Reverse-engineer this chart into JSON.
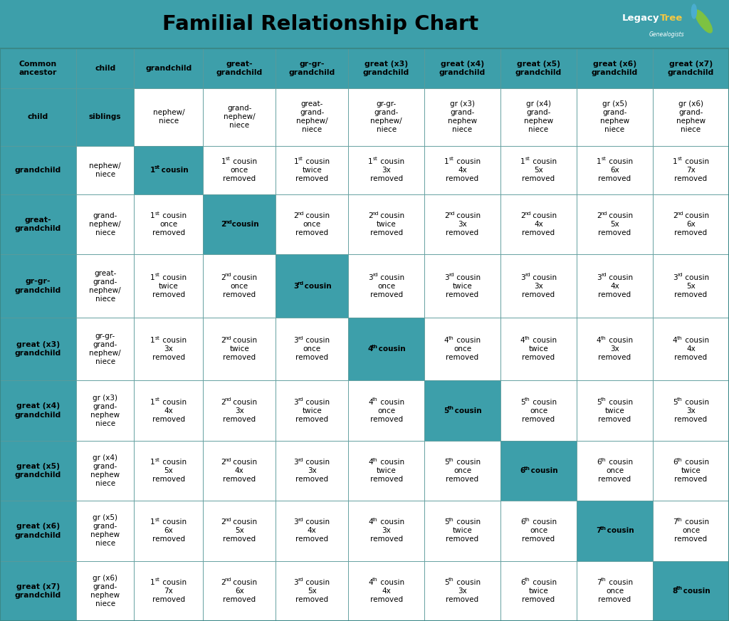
{
  "title": "Familial Relationship Chart",
  "teal": "#3d9faa",
  "white": "#ffffff",
  "black": "#000000",
  "dark_border": "#4a8a8a",
  "col_headers": [
    "Common\nancestor",
    "child",
    "grandchild",
    "great-\ngrandchild",
    "gr-gr-\ngrandchild",
    "great (x3)\ngrandchild",
    "great (x4)\ngrandchild",
    "great (x5)\ngrandchild",
    "great (x6)\ngrandchild",
    "great (x7)\ngrandchild"
  ],
  "row_headers": [
    "child",
    "grandchild",
    "great-\ngrandchild",
    "gr-gr-\ngrandchild",
    "great (x3)\ngrandchild",
    "great (x4)\ngrandchild",
    "great (x5)\ngrandchild",
    "great (x6)\ngrandchild",
    "great (x7)\ngrandchild"
  ],
  "cells": [
    [
      "siblings",
      "nephew/\nniece",
      "grand-\nnephew/\nniece",
      "great-\ngrand-\nnephew/\nniece",
      "gr-gr-\ngrand-\nnephew/\nniece",
      "gr (x3)\ngrand-\nnephew\nniece",
      "gr (x4)\ngrand-\nnephew\nniece",
      "gr (x5)\ngrand-\nnephew\nniece",
      "gr (x6)\ngrand-\nnephew\nniece"
    ],
    [
      "nephew/\nniece",
      "1~st~ cousin",
      "1~st~ cousin\nonce\nremoved",
      "1~st~ cousin\ntwice\nremoved",
      "1~st~ cousin\n3x\nremoved",
      "1~st~ cousin\n4x\nremoved",
      "1~st~ cousin\n5x\nremoved",
      "1~st~ cousin\n6x\nremoved",
      "1~st~ cousin\n7x\nremoved"
    ],
    [
      "grand-\nnephew/\nniece",
      "1~st~ cousin\nonce\nremoved",
      "2~nd~ cousin",
      "2~nd~ cousin\nonce\nremoved",
      "2~nd~ cousin\ntwice\nremoved",
      "2~nd~ cousin\n3x\nremoved",
      "2~nd~ cousin\n4x\nremoved",
      "2~nd~ cousin\n5x\nremoved",
      "2~nd~ cousin\n6x\nremoved"
    ],
    [
      "great-\ngrand-\nnephew/\nniece",
      "1~st~ cousin\ntwice\nremoved",
      "2~nd~ cousin\nonce\nremoved",
      "3~rd~ cousin",
      "3~rd~ cousin\nonce\nremoved",
      "3~rd~ cousin\ntwice\nremoved",
      "3~rd~ cousin\n3x\nremoved",
      "3~rd~ cousin\n4x\nremoved",
      "3~rd~ cousin\n5x\nremoved"
    ],
    [
      "gr-gr-\ngrand-\nnephew/\nniece",
      "1~st~ cousin\n3x\nremoved",
      "2~nd~ cousin\ntwice\nremoved",
      "3~rd~ cousin\nonce\nremoved",
      "4~th~ cousin",
      "4~th~ cousin\nonce\nremoved",
      "4~th~ cousin\ntwice\nremoved",
      "4~th~ cousin\n3x\nremoved",
      "4~th~ cousin\n4x\nremoved"
    ],
    [
      "gr (x3)\ngrand-\nnephew\nniece",
      "1~st~ cousin\n4x\nremoved",
      "2~nd~ cousin\n3x\nremoved",
      "3~rd~ cousin\ntwice\nremoved",
      "4~th~ cousin\nonce\nremoved",
      "5~th~ cousin",
      "5~th~ cousin\nonce\nremoved",
      "5~th~ cousin\ntwice\nremoved",
      "5~th~ cousin\n3x\nremoved"
    ],
    [
      "gr (x4)\ngrand-\nnephew\nniece",
      "1~st~ cousin\n5x\nremoved",
      "2~nd~ cousin\n4x\nremoved",
      "3~rd~ cousin\n3x\nremoved",
      "4~th~ cousin\ntwice\nremoved",
      "5~th~ cousin\nonce\nremoved",
      "6~th~ cousin",
      "6~th~ cousin\nonce\nremoved",
      "6~th~ cousin\ntwice\nremoved"
    ],
    [
      "gr (x5)\ngrand-\nnephew\nniece",
      "1~st~ cousin\n6x\nremoved",
      "2~nd~ cousin\n5x\nremoved",
      "3~rd~ cousin\n4x\nremoved",
      "4~th~ cousin\n3x\nremoved",
      "5~th~ cousin\ntwice\nremoved",
      "6~th~ cousin\nonce\nremoved",
      "7~th~ cousin",
      "7~th~ cousin\nonce\nremoved"
    ],
    [
      "gr (x6)\ngrand-\nnephew\nniece",
      "1~st~ cousin\n7x\nremoved",
      "2~nd~ cousin\n6x\nremoved",
      "3~rd~ cousin\n5x\nremoved",
      "4~th~ cousin\n4x\nremoved",
      "5~th~ cousin\n3x\nremoved",
      "6~th~ cousin\ntwice\nremoved",
      "7~th~ cousin\nonce\nremoved",
      "8~th~ cousin"
    ]
  ]
}
